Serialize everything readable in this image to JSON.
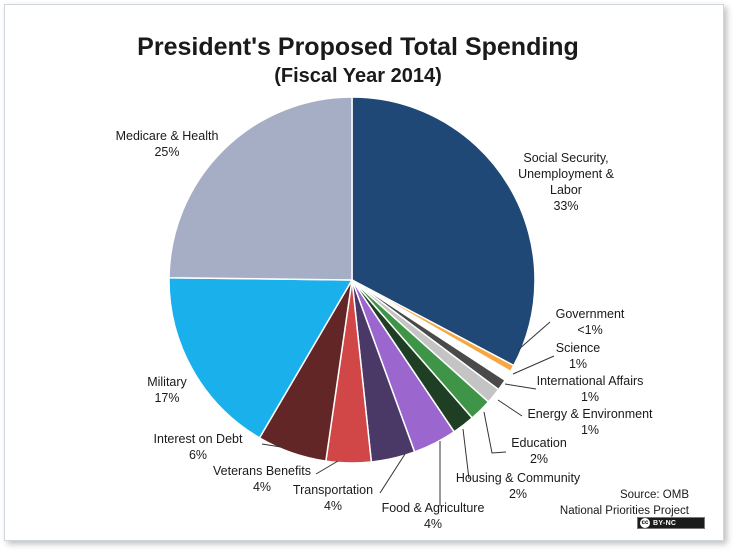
{
  "chart_data": {
    "type": "pie",
    "title": "President's Proposed Total Spending",
    "subtitle": "(Fiscal Year 2014)",
    "slices": [
      {
        "label": [
          "Social Security,",
          "Unemployment &",
          "Labor"
        ],
        "pct_text": "33%",
        "value": 33.0,
        "color": "#1f4876"
      },
      {
        "label": [
          "Government"
        ],
        "pct_text": "<1%",
        "value": 0.6,
        "color": "#f7a640"
      },
      {
        "label": [
          "Science"
        ],
        "pct_text": "1%",
        "value": 0.9,
        "color": "#ffffff"
      },
      {
        "label": [
          "International Affairs"
        ],
        "pct_text": "1%",
        "value": 1.0,
        "color": "#4a4a4a"
      },
      {
        "label": [
          "Energy & Environment"
        ],
        "pct_text": "1%",
        "value": 1.4,
        "color": "#c4c4c4"
      },
      {
        "label": [
          "Education"
        ],
        "pct_text": "2%",
        "value": 2.0,
        "color": "#3f9547"
      },
      {
        "label": [
          "Housing & Community"
        ],
        "pct_text": "2%",
        "value": 2.0,
        "color": "#1f3f24"
      },
      {
        "label": [
          "Food & Agriculture"
        ],
        "pct_text": "4%",
        "value": 3.9,
        "color": "#9c66cf"
      },
      {
        "label": [
          "Transportation"
        ],
        "pct_text": "4%",
        "value": 3.9,
        "color": "#4a3867"
      },
      {
        "label": [
          "Veterans Benefits"
        ],
        "pct_text": "4%",
        "value": 4.0,
        "color": "#d14646"
      },
      {
        "label": [
          "Interest on Debt"
        ],
        "pct_text": "6%",
        "value": 6.2,
        "color": "#632627"
      },
      {
        "label": [
          "Military"
        ],
        "pct_text": "17%",
        "value": 16.9,
        "color": "#1ab0ec"
      },
      {
        "label": [
          "Medicare & Health"
        ],
        "pct_text": "25%",
        "value": 25.0,
        "color": "#a5aec5"
      }
    ]
  },
  "source": {
    "line1": "Source: OMB",
    "line2": "National Priorities Project",
    "badge": "BY-NC",
    "badge_icon": "cc"
  }
}
